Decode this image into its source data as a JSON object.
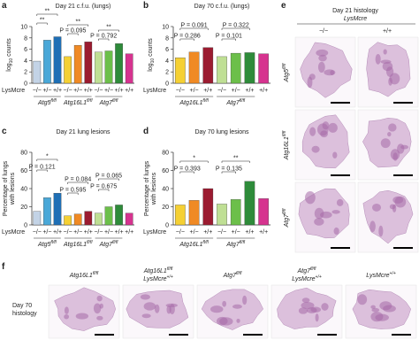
{
  "chart_data": [
    {
      "type": "bar",
      "panel": "a",
      "title": "Day 21 c.f.u. (lungs)",
      "ylabel_parts": [
        "log",
        "10",
        " counts"
      ],
      "row_label": "LysMcre",
      "categories": [
        "−/−",
        "+/−",
        "+/+",
        "−/−",
        "+/−",
        "+/+",
        "−/−",
        "+/−",
        "+/+",
        "+/+"
      ],
      "groups": [
        {
          "name": "Atg5",
          "sup": "fl/fl"
        },
        {
          "name": "Atg16L1",
          "sup": "fl/fl"
        },
        {
          "name": "Atg7",
          "sup": "fl/fl"
        }
      ],
      "values": [
        3.9,
        7.6,
        8.2,
        4.7,
        6.7,
        7.3,
        5.5,
        5.7,
        7.0,
        5.2
      ],
      "colors": [
        "#c3d3e6",
        "#4aa8d8",
        "#1f6fb5",
        "#f5d033",
        "#f08a24",
        "#9b1b30",
        "#bfdf94",
        "#6cbf4a",
        "#2e8b3a",
        "#d6338f"
      ],
      "ylim": [
        0,
        10
      ],
      "yticks": [
        0,
        2,
        4,
        6,
        8,
        10
      ],
      "annotations": [
        "**",
        "**",
        "P = 0.095",
        "**",
        "P = 0.792",
        "**"
      ]
    },
    {
      "type": "bar",
      "panel": "b",
      "title": "Day 70 c.f.u. (lungs)",
      "ylabel_parts": [
        "log",
        "10",
        " counts"
      ],
      "row_label": "LysMcre",
      "categories": [
        "−/−",
        "+/−",
        "+/+",
        "−/−",
        "+/−",
        "+/+",
        "+/+"
      ],
      "groups": [
        {
          "name": "Atg16L1",
          "sup": "fl/fl"
        },
        {
          "name": "Atg7",
          "sup": "fl/fl"
        }
      ],
      "values": [
        4.5,
        5.5,
        6.3,
        4.7,
        5.3,
        5.4,
        5.2
      ],
      "colors": [
        "#f5d033",
        "#f08a24",
        "#9b1b30",
        "#bfdf94",
        "#6cbf4a",
        "#2e8b3a",
        "#d6338f"
      ],
      "ylim": [
        0,
        10
      ],
      "yticks": [
        0,
        2,
        4,
        6,
        8,
        10
      ],
      "annotations": [
        "P = 0.091",
        "P = 0.286",
        "P = 0.322",
        "P = 0.101"
      ]
    },
    {
      "type": "bar",
      "panel": "c",
      "title": "Day 21 lung lesions",
      "ylabel_lines": [
        "Percentage of lungs",
        "with lesions"
      ],
      "row_label": "LysMcre",
      "categories": [
        "−/−",
        "+/−",
        "+/+",
        "−/−",
        "+/−",
        "+/+",
        "−/−",
        "+/−",
        "+/+",
        "+/+"
      ],
      "groups": [
        {
          "name": "Atg5",
          "sup": "fl/fl"
        },
        {
          "name": "Atg16L1",
          "sup": "fl/fl"
        },
        {
          "name": "Atg7",
          "sup": "fl/fl"
        }
      ],
      "values": [
        15,
        30,
        35,
        10,
        12,
        15,
        13,
        20,
        22,
        13
      ],
      "colors": [
        "#c3d3e6",
        "#4aa8d8",
        "#1f6fb5",
        "#f5d033",
        "#f08a24",
        "#9b1b30",
        "#bfdf94",
        "#6cbf4a",
        "#2e8b3a",
        "#d6338f"
      ],
      "ylim": [
        0,
        80
      ],
      "yticks": [
        0,
        20,
        40,
        60,
        80
      ],
      "annotations": [
        "*",
        "P = 0.121",
        "P = 0.084",
        "P = 0.595",
        "P = 0.065",
        "P = 0.675"
      ]
    },
    {
      "type": "bar",
      "panel": "d",
      "title": "Day 70 lung lesions",
      "ylabel_lines": [
        "Percentage of lungs",
        "with lesions"
      ],
      "row_label": "LysMcre",
      "categories": [
        "−/−",
        "+/−",
        "+/+",
        "−/−",
        "+/−",
        "+/+",
        "+/+"
      ],
      "groups": [
        {
          "name": "Atg16L1",
          "sup": "fl/fl"
        },
        {
          "name": "Atg7",
          "sup": "fl/fl"
        }
      ],
      "values": [
        22,
        27,
        40,
        23,
        28,
        48,
        29
      ],
      "colors": [
        "#f5d033",
        "#f08a24",
        "#9b1b30",
        "#bfdf94",
        "#6cbf4a",
        "#2e8b3a",
        "#d6338f"
      ],
      "ylim": [
        0,
        80
      ],
      "yticks": [
        0,
        20,
        40,
        60,
        80
      ],
      "annotations": [
        "*",
        "P = 0.393",
        "**",
        "P = 0.135"
      ]
    }
  ],
  "panel_e": {
    "panel": "e",
    "title": "Day 21 histology",
    "subtitle": "LysMcre",
    "columns": [
      "−/−",
      "+/+"
    ],
    "rows": [
      {
        "name": "Atg5",
        "sup": "fl/fl"
      },
      {
        "name": "Atg16L1",
        "sup": "fl/fl"
      },
      {
        "name": "Atg7",
        "sup": "fl/fl"
      }
    ]
  },
  "panel_f": {
    "panel": "f",
    "row_label": [
      "Day 70",
      "histology"
    ],
    "columns": [
      [
        {
          "name": "Atg16L1",
          "sup": "fl/fl"
        }
      ],
      [
        {
          "name": "Atg16L1",
          "sup": "fl/fl"
        },
        {
          "name": "LysMcre",
          "sup": "+/+"
        }
      ],
      [
        {
          "name": "Atg7",
          "sup": "fl/fl"
        }
      ],
      [
        {
          "name": "Atg7",
          "sup": "fl/fl"
        },
        {
          "name": "LysMcre",
          "sup": "+/+"
        }
      ],
      [
        {
          "name": "LysMcre",
          "sup": "+/+"
        }
      ]
    ]
  }
}
